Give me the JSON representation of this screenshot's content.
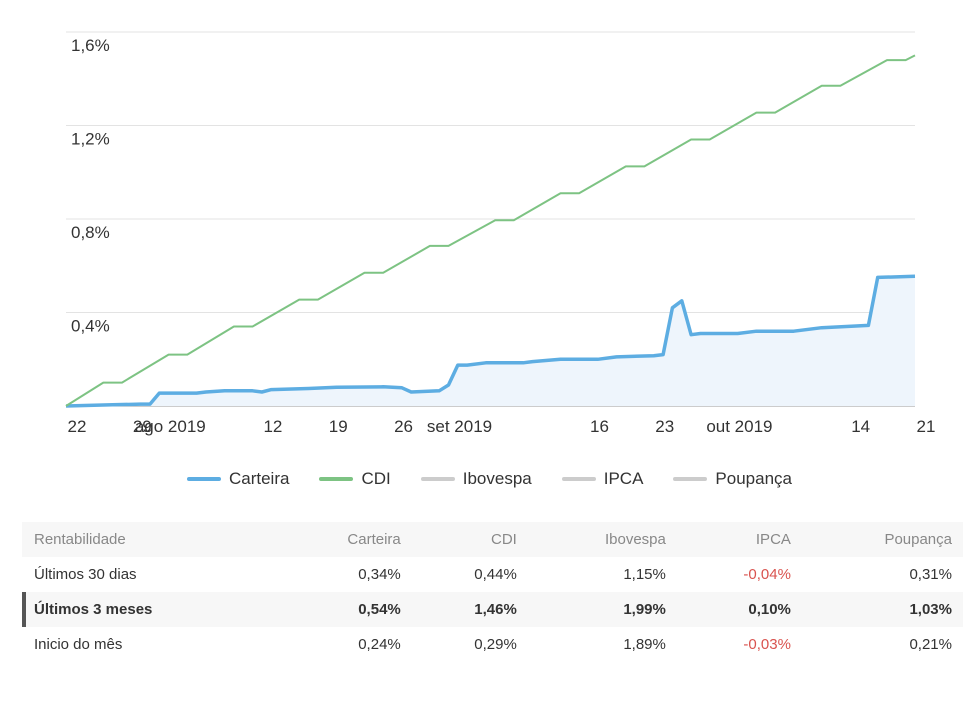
{
  "chart_data": {
    "type": "line",
    "y_ticks": [
      "1,6%",
      "1,2%",
      "0,8%",
      "0,4%"
    ],
    "y_tick_values": [
      1.6,
      1.2,
      0.8,
      0.4
    ],
    "ylim": [
      0,
      1.6
    ],
    "x_ticks": [
      {
        "t": 0,
        "label": "22"
      },
      {
        "t": 7,
        "label": "29"
      },
      {
        "t": 10,
        "label": "ago 2019"
      },
      {
        "t": 21,
        "label": "12"
      },
      {
        "t": 28,
        "label": "19"
      },
      {
        "t": 35,
        "label": "26"
      },
      {
        "t": 41,
        "label": "set 2019"
      },
      {
        "t": 56,
        "label": "16"
      },
      {
        "t": 63,
        "label": "23"
      },
      {
        "t": 71,
        "label": "out 2019"
      },
      {
        "t": 84,
        "label": "14"
      },
      {
        "t": 91,
        "label": "21"
      }
    ],
    "xlim": [
      0,
      91
    ],
    "series": [
      {
        "name": "Carteira",
        "color": "#5dade2",
        "fill": true,
        "points": [
          [
            0,
            0
          ],
          [
            5,
            0.005
          ],
          [
            8,
            0.008
          ],
          [
            9,
            0.008
          ],
          [
            10,
            0.055
          ],
          [
            14,
            0.055
          ],
          [
            15,
            0.06
          ],
          [
            17,
            0.065
          ],
          [
            20,
            0.065
          ],
          [
            21,
            0.06
          ],
          [
            22,
            0.07
          ],
          [
            26,
            0.075
          ],
          [
            29,
            0.08
          ],
          [
            34,
            0.082
          ],
          [
            36,
            0.078
          ],
          [
            37,
            0.06
          ],
          [
            40,
            0.065
          ],
          [
            41,
            0.09
          ],
          [
            42,
            0.175
          ],
          [
            43,
            0.175
          ],
          [
            45,
            0.185
          ],
          [
            49,
            0.185
          ],
          [
            50,
            0.19
          ],
          [
            53,
            0.2
          ],
          [
            57,
            0.2
          ],
          [
            59,
            0.21
          ],
          [
            63,
            0.215
          ],
          [
            64,
            0.22
          ],
          [
            65,
            0.42
          ],
          [
            66,
            0.45
          ],
          [
            67,
            0.305
          ],
          [
            68,
            0.31
          ],
          [
            72,
            0.31
          ],
          [
            74,
            0.32
          ],
          [
            78,
            0.32
          ],
          [
            81,
            0.335
          ],
          [
            86,
            0.345
          ],
          [
            87,
            0.55
          ],
          [
            91,
            0.555
          ]
        ]
      },
      {
        "name": "CDI",
        "color": "#7dc383",
        "fill": false,
        "points": [
          [
            0,
            0
          ],
          [
            4,
            0.1
          ],
          [
            6,
            0.1
          ],
          [
            11,
            0.22
          ],
          [
            13,
            0.22
          ],
          [
            18,
            0.34
          ],
          [
            20,
            0.34
          ],
          [
            25,
            0.455
          ],
          [
            27,
            0.455
          ],
          [
            32,
            0.57
          ],
          [
            34,
            0.57
          ],
          [
            39,
            0.685
          ],
          [
            41,
            0.685
          ],
          [
            46,
            0.795
          ],
          [
            48,
            0.795
          ],
          [
            53,
            0.91
          ],
          [
            55,
            0.91
          ],
          [
            60,
            1.025
          ],
          [
            62,
            1.025
          ],
          [
            67,
            1.14
          ],
          [
            69,
            1.14
          ],
          [
            74,
            1.255
          ],
          [
            76,
            1.255
          ],
          [
            81,
            1.37
          ],
          [
            83,
            1.37
          ],
          [
            88,
            1.48
          ],
          [
            90,
            1.48
          ],
          [
            91,
            1.5
          ]
        ]
      }
    ],
    "legend": [
      {
        "name": "Carteira",
        "color": "#5dade2"
      },
      {
        "name": "CDI",
        "color": "#7dc383"
      },
      {
        "name": "Ibovespa",
        "color": "#cccccc"
      },
      {
        "name": "IPCA",
        "color": "#cccccc"
      },
      {
        "name": "Poupança",
        "color": "#cccccc"
      }
    ]
  },
  "table": {
    "headers": [
      "Rentabilidade",
      "Carteira",
      "CDI",
      "Ibovespa",
      "IPCA",
      "Poupança"
    ],
    "rows": [
      {
        "label": "Últimos 30 dias",
        "cells": [
          "0,34%",
          "0,44%",
          "1,15%",
          "-0,04%",
          "0,31%"
        ]
      },
      {
        "label": "Últimos 3 meses",
        "cells": [
          "0,54%",
          "1,46%",
          "1,99%",
          "0,10%",
          "1,03%"
        ]
      },
      {
        "label": "Inicio do mês",
        "cells": [
          "0,24%",
          "0,29%",
          "1,89%",
          "-0,03%",
          "0,21%"
        ]
      }
    ]
  }
}
